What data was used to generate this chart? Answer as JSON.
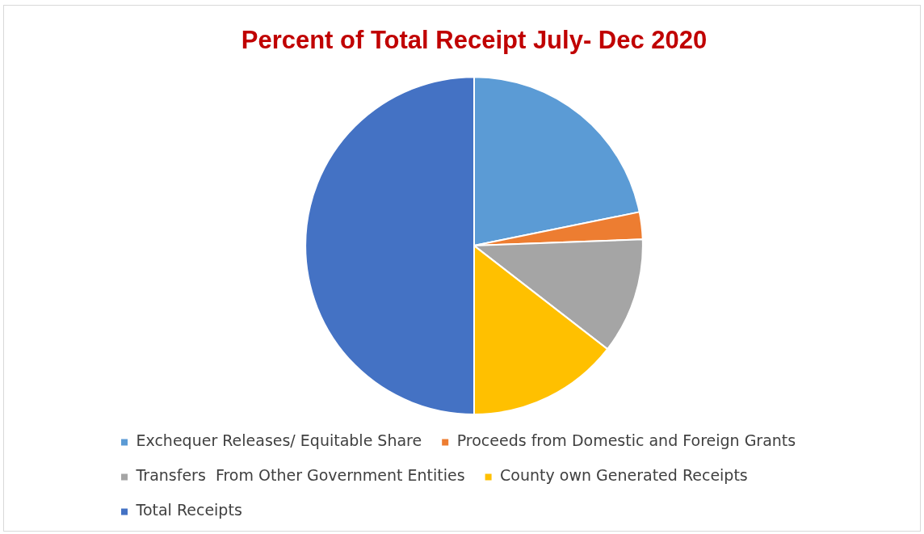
{
  "chart_data": {
    "type": "pie",
    "title": "Percent of Total Receipt July- Dec 2020",
    "categories": [
      "Exchequer Releases/ Equitable Share",
      "Proceeds from Domestic and Foreign Grants",
      "Transfers  From Other Government Entities",
      "County own Generated Receipts",
      "Total Receipts"
    ],
    "values": [
      21.8,
      2.6,
      11.1,
      14.5,
      50
    ],
    "colors": [
      "#5b9bd5",
      "#ed7d31",
      "#a5a5a5",
      "#ffc000",
      "#4472c4"
    ],
    "legend": "bottom"
  }
}
